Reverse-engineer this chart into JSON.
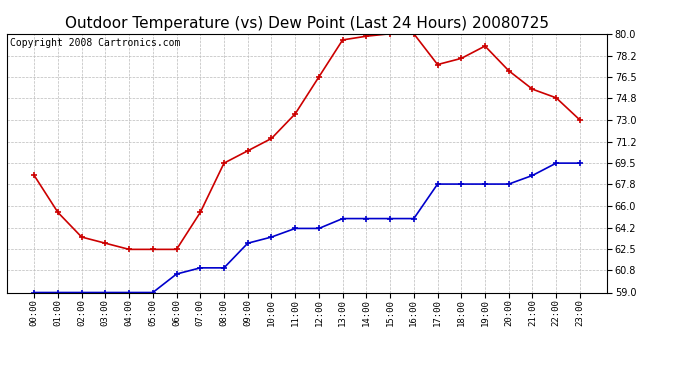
{
  "title": "Outdoor Temperature (vs) Dew Point (Last 24 Hours) 20080725",
  "copyright_text": "Copyright 2008 Cartronics.com",
  "x_labels": [
    "00:00",
    "01:00",
    "02:00",
    "03:00",
    "04:00",
    "05:00",
    "06:00",
    "07:00",
    "08:00",
    "09:00",
    "10:00",
    "11:00",
    "12:00",
    "13:00",
    "14:00",
    "15:00",
    "16:00",
    "17:00",
    "18:00",
    "19:00",
    "20:00",
    "21:00",
    "22:00",
    "23:00"
  ],
  "temp_red": [
    68.5,
    65.5,
    63.5,
    63.0,
    62.5,
    62.5,
    62.5,
    65.5,
    69.5,
    70.5,
    71.5,
    73.5,
    76.5,
    79.5,
    79.8,
    80.0,
    80.0,
    77.5,
    78.0,
    79.0,
    77.0,
    75.5,
    74.8,
    73.0
  ],
  "dew_blue": [
    59.0,
    59.0,
    59.0,
    59.0,
    59.0,
    59.0,
    60.5,
    61.0,
    61.0,
    63.0,
    63.5,
    64.2,
    64.2,
    65.0,
    65.0,
    65.0,
    65.0,
    67.8,
    67.8,
    67.8,
    67.8,
    68.5,
    69.5,
    69.5
  ],
  "ylim": [
    59.0,
    80.0
  ],
  "yticks": [
    59.0,
    60.8,
    62.5,
    64.2,
    66.0,
    67.8,
    69.5,
    71.2,
    73.0,
    74.8,
    76.5,
    78.2,
    80.0
  ],
  "temp_color": "#cc0000",
  "dew_color": "#0000cc",
  "bg_color": "#ffffff",
  "plot_bg_color": "#ffffff",
  "grid_color": "#bbbbbb",
  "title_fontsize": 11,
  "copyright_fontsize": 7,
  "figwidth": 6.9,
  "figheight": 3.75,
  "dpi": 100
}
